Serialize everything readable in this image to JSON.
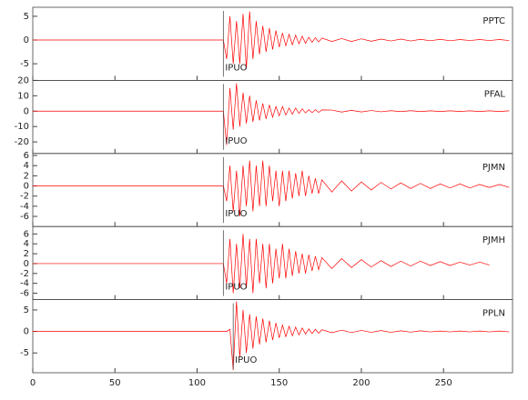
{
  "chart_data": [
    {
      "type": "line",
      "label": "PPTC",
      "x": [
        0,
        116,
        118,
        120,
        122,
        124,
        126,
        128,
        130,
        132,
        134,
        136,
        138,
        140,
        142,
        144,
        146,
        148,
        150,
        152,
        154,
        156,
        158,
        160,
        162,
        164,
        166,
        168,
        170,
        172,
        174,
        176,
        182,
        188,
        194,
        200,
        206,
        212,
        218,
        224,
        230,
        236,
        242,
        248,
        254,
        260,
        266,
        272,
        278,
        284,
        290
      ],
      "series": [
        {
          "color": "#ff0000",
          "values": [
            0,
            0,
            -4,
            5,
            -5,
            4,
            -5,
            5.5,
            -6,
            6,
            -4,
            4,
            -3,
            3,
            -2.5,
            2.5,
            -2,
            2,
            -1.5,
            1.5,
            -1.2,
            1.2,
            -1,
            1,
            -0.8,
            0.8,
            -0.7,
            0.6,
            -0.5,
            0.5,
            -0.4,
            0.4,
            -0.3,
            0.3,
            -0.3,
            0.25,
            -0.25,
            0.2,
            -0.2,
            0.2,
            -0.2,
            0.15,
            -0.15,
            0.15,
            -0.15,
            0.1,
            -0.1,
            0.1,
            -0.1,
            0.1,
            -0.1
          ]
        }
      ],
      "xlim": [
        0,
        292
      ],
      "xticks": [
        0,
        50,
        100,
        150,
        200,
        250
      ],
      "ylim": [
        -8.5,
        6.9
      ],
      "yticks": [
        -5,
        0,
        5
      ],
      "pick": {
        "label": "IPUO",
        "x": 116
      }
    },
    {
      "type": "line",
      "label": "PFAL",
      "x": [
        0,
        116,
        118,
        120,
        122,
        124,
        126,
        128,
        130,
        132,
        134,
        136,
        138,
        140,
        142,
        144,
        146,
        148,
        150,
        152,
        154,
        156,
        158,
        160,
        162,
        164,
        166,
        168,
        170,
        172,
        174,
        176,
        182,
        188,
        194,
        200,
        206,
        212,
        218,
        224,
        230,
        236,
        242,
        248,
        254,
        260,
        266,
        272,
        278,
        284,
        290
      ],
      "series": [
        {
          "color": "#ff0000",
          "values": [
            0,
            0,
            -22,
            15,
            -12,
            18,
            -10,
            12,
            -8,
            10,
            -7,
            7,
            -6,
            5,
            -5,
            4,
            -4,
            3,
            -3,
            3,
            -2.5,
            2,
            -2,
            2,
            -1.5,
            1.5,
            -1.2,
            1,
            -1,
            1,
            -0.8,
            0.8,
            0.7,
            -0.6,
            0.5,
            -0.5,
            0.4,
            -0.4,
            0.3,
            -0.3,
            0.3,
            -0.3,
            0.2,
            -0.2,
            0.2,
            -0.2,
            0.2,
            -0.2,
            0.2,
            -0.2,
            0.2
          ]
        }
      ],
      "xlim": [
        0,
        292
      ],
      "xticks": [
        0,
        50,
        100,
        150,
        200,
        250
      ],
      "ylim": [
        -27.5,
        20
      ],
      "yticks": [
        -20,
        -10,
        0,
        10,
        20
      ],
      "pick": {
        "label": "IPUO",
        "x": 116
      }
    },
    {
      "type": "line",
      "label": "PJMN",
      "x": [
        0,
        116,
        118,
        120,
        122,
        124,
        126,
        128,
        130,
        132,
        134,
        136,
        138,
        140,
        142,
        144,
        146,
        148,
        150,
        152,
        154,
        156,
        158,
        160,
        162,
        164,
        166,
        168,
        170,
        172,
        174,
        176,
        182,
        188,
        194,
        200,
        206,
        212,
        218,
        224,
        230,
        236,
        242,
        248,
        254,
        260,
        266,
        272,
        278,
        284,
        290
      ],
      "series": [
        {
          "color": "#ff0000",
          "values": [
            0,
            0,
            -3,
            4,
            -5,
            3,
            -6,
            4,
            -4,
            5,
            -5,
            4,
            -4,
            5,
            -4,
            4,
            -3,
            3,
            -4,
            3,
            -3,
            3,
            -2.5,
            2.5,
            -2,
            3,
            -2,
            2,
            -1.5,
            1.5,
            -1.5,
            1.2,
            -1.2,
            1,
            -1,
            0.8,
            -0.8,
            0.7,
            -0.6,
            0.6,
            -0.5,
            0.5,
            -0.5,
            0.4,
            -0.4,
            0.4,
            -0.4,
            0.3,
            -0.3,
            0.3,
            -0.3
          ]
        }
      ],
      "xlim": [
        0,
        292
      ],
      "xticks": [
        0,
        50,
        100,
        150,
        200,
        250
      ],
      "ylim": [
        -8,
        6.4
      ],
      "yticks": [
        -6,
        -4,
        -2,
        0,
        2,
        4,
        6
      ],
      "pick": {
        "label": "IPUO",
        "x": 116
      }
    },
    {
      "type": "line",
      "label": "PJMH",
      "x": [
        0,
        116,
        118,
        120,
        122,
        124,
        126,
        128,
        130,
        132,
        134,
        136,
        138,
        140,
        142,
        144,
        146,
        148,
        150,
        152,
        154,
        156,
        158,
        160,
        162,
        164,
        166,
        168,
        170,
        172,
        174,
        176,
        182,
        188,
        194,
        200,
        206,
        212,
        218,
        224,
        230,
        236,
        242,
        248,
        254,
        260,
        266,
        272,
        278,
        284,
        290
      ],
      "series": [
        {
          "color": "#ff0000",
          "values": [
            0,
            0,
            -4,
            5,
            -6,
            4,
            -5,
            6,
            -5,
            5,
            -6,
            5,
            -4,
            4,
            -5,
            4,
            -4,
            3,
            -3,
            4,
            -3,
            3,
            -2.5,
            2.5,
            -2,
            2,
            -2,
            1.8,
            -1.5,
            1.5,
            -1.2,
            1.2,
            -1,
            1,
            -0.8,
            0.8,
            -0.7,
            0.6,
            -0.6,
            0.5,
            -0.5,
            0.5,
            -0.4,
            0.4,
            -0.4,
            0.3,
            -0.3,
            0.3,
            -0.3,
            null,
            null
          ]
        }
      ],
      "xlim": [
        0,
        292
      ],
      "xticks": [
        0,
        50,
        100,
        150,
        200,
        250
      ],
      "ylim": [
        -7.3,
        7.5
      ],
      "yticks": [
        -6,
        -4,
        -2,
        0,
        2,
        4,
        6
      ],
      "pick": {
        "label": "IPUO",
        "x": 116
      }
    },
    {
      "type": "line",
      "label": "PPLN",
      "x": [
        0,
        116,
        118,
        120,
        122,
        124,
        126,
        128,
        130,
        132,
        134,
        136,
        138,
        140,
        142,
        144,
        146,
        148,
        150,
        152,
        154,
        156,
        158,
        160,
        162,
        164,
        166,
        168,
        170,
        172,
        174,
        176,
        182,
        188,
        194,
        200,
        206,
        212,
        218,
        224,
        230,
        236,
        242,
        248,
        254,
        260,
        266,
        272,
        278,
        284,
        290
      ],
      "series": [
        {
          "color": "#ff0000",
          "values": [
            0,
            0,
            0,
            0.5,
            -9,
            7,
            -6,
            5,
            -5,
            4,
            -4,
            3.5,
            -3,
            3,
            -2.5,
            2.5,
            -2,
            2,
            -1.5,
            1.5,
            -1.2,
            1.2,
            -1,
            1,
            -0.8,
            0.8,
            -0.6,
            0.6,
            -0.5,
            0.5,
            -0.4,
            0.4,
            -0.3,
            0.3,
            -0.25,
            0.25,
            -0.2,
            0.2,
            -0.2,
            0.15,
            -0.15,
            0.15,
            -0.1,
            0.1,
            -0.1,
            0.1,
            -0.1,
            0.1,
            -0.1,
            0.1,
            -0.1
          ]
        }
      ],
      "xlim": [
        0,
        292
      ],
      "xticks": [
        0,
        50,
        100,
        150,
        200,
        250
      ],
      "ylim": [
        -9.6,
        7.4
      ],
      "yticks": [
        -5,
        0,
        5
      ],
      "pick": {
        "label": "IPUO",
        "x": 122
      }
    }
  ]
}
